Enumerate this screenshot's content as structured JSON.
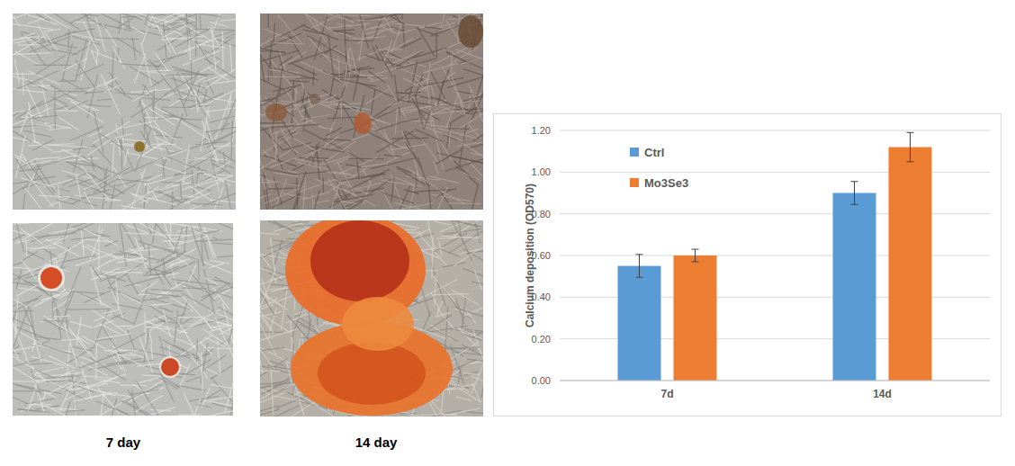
{
  "chart_data": {
    "type": "bar",
    "categories": [
      "7d",
      "14d"
    ],
    "series": [
      {
        "name": "Ctrl",
        "color": "#5b9bd5",
        "values": [
          0.55,
          0.9
        ],
        "errors": [
          0.055,
          0.055
        ]
      },
      {
        "name": "Mo3Se3",
        "color": "#ed7d31",
        "values": [
          0.6,
          1.12
        ],
        "errors": [
          0.03,
          0.07
        ]
      }
    ],
    "y_label": "Calcium deposition (OD570)",
    "ylim": [
      0,
      1.2
    ],
    "yticks": [
      {
        "value": 0,
        "label": "0.00"
      },
      {
        "value": 0.2,
        "label": "0.20"
      },
      {
        "value": 0.4,
        "label": "0.40"
      },
      {
        "value": 0.6,
        "label": "0.60"
      },
      {
        "value": 0.8,
        "label": "0.80"
      },
      {
        "value": 1.0,
        "label": "1.00"
      },
      {
        "value": 1.2,
        "label": "1.20"
      }
    ],
    "grid": true,
    "legend": "upper left"
  },
  "panels": {
    "labels": [
      "7 day",
      "14 day"
    ]
  }
}
